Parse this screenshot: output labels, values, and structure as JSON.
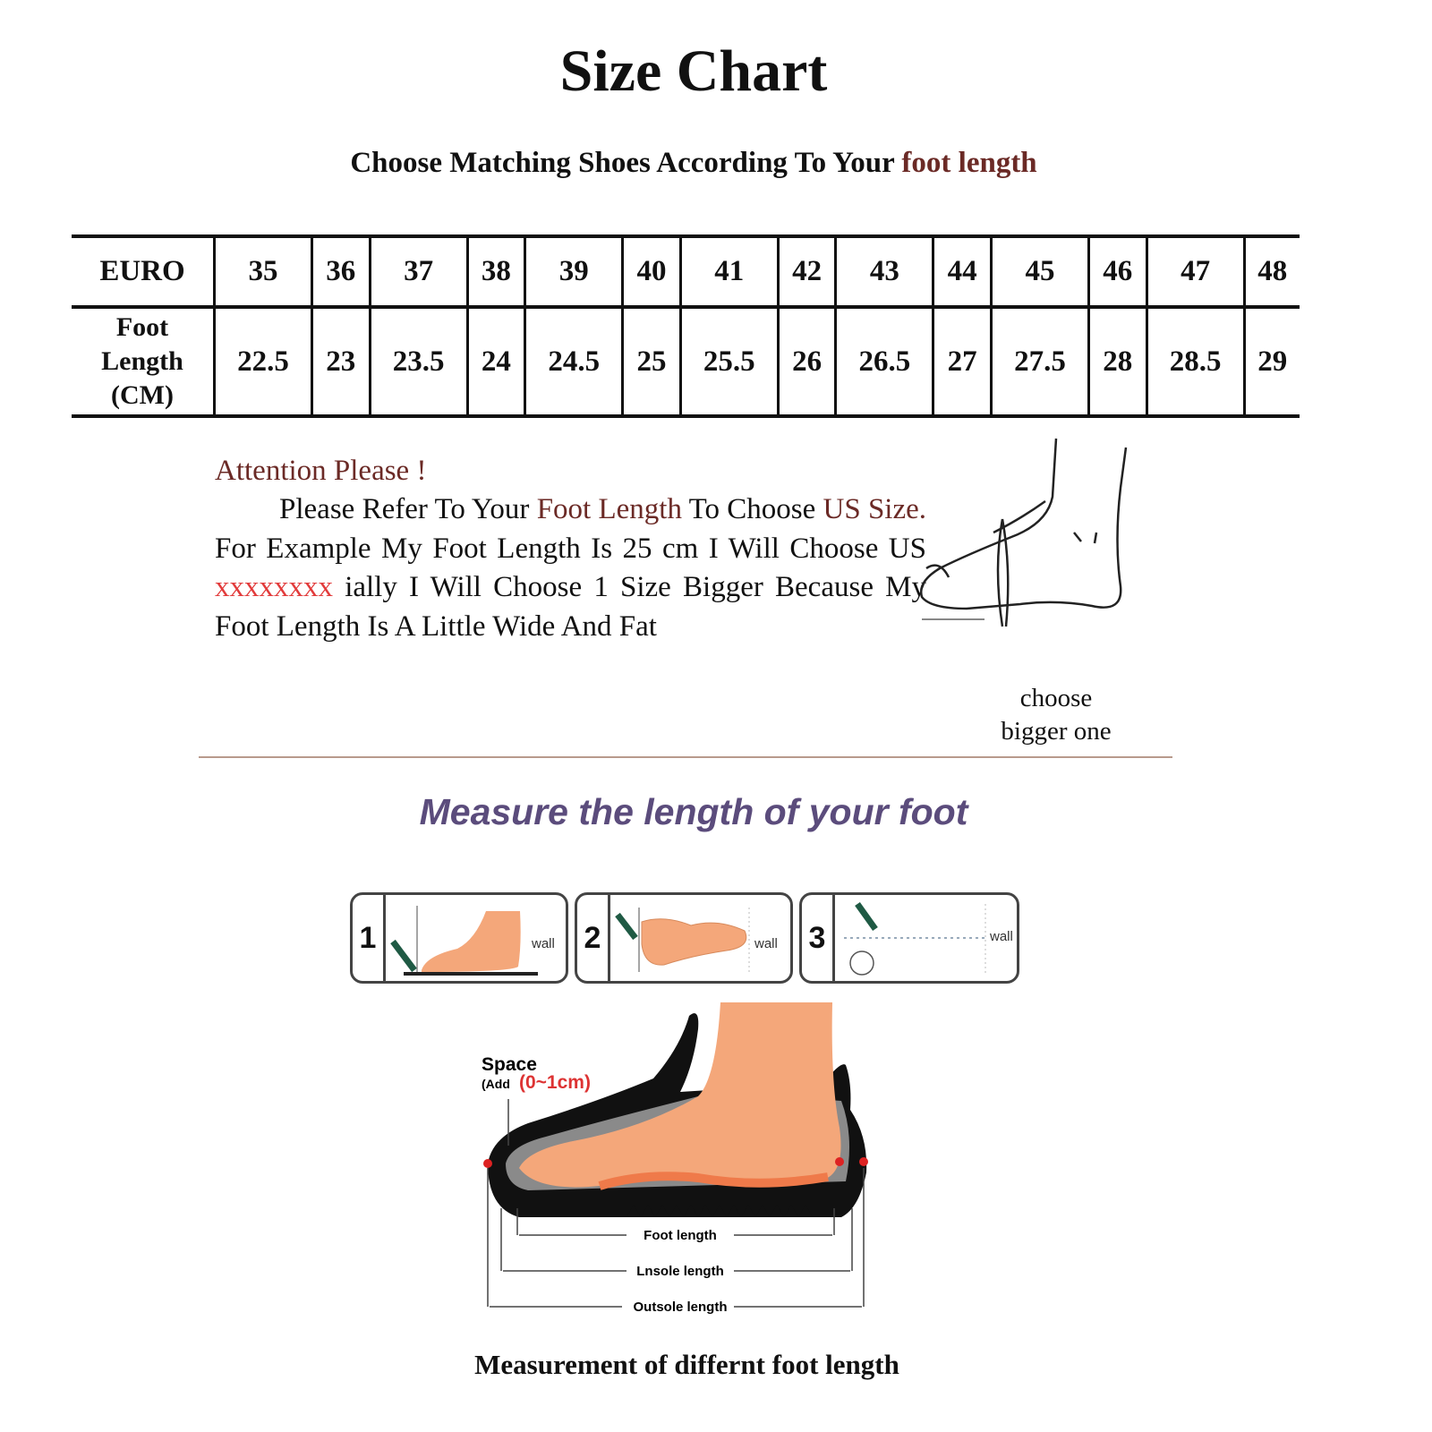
{
  "title": "Size Chart",
  "subtitle": {
    "prefix": "Choose Matching Shoes According To Your ",
    "highlight": "foot length"
  },
  "size_table": {
    "row_headers": [
      "EURO",
      "Foot",
      "Length",
      "(CM)"
    ],
    "euro": [
      "35",
      "36",
      "37",
      "38",
      "39",
      "40",
      "41",
      "42",
      "43",
      "44",
      "45",
      "46",
      "47",
      "48"
    ],
    "foot_length_cm": [
      "22.5",
      "23",
      "23.5",
      "24",
      "24.5",
      "25",
      "25.5",
      "26",
      "26.5",
      "27",
      "27.5",
      "28",
      "28.5",
      "29"
    ]
  },
  "attention": {
    "heading": "Attention Please !",
    "p1": "Please Refer To Your ",
    "p1_hl": "Foot Length",
    "p2": " To Choose ",
    "p2_hl": "US Size.",
    "p3": " For Example My Foot Length Is 25 cm I Will Choose US ",
    "p3_red": "xxxxxxxx",
    "p4": " ially I Will Choose 1 Size Bigger Because My Foot Length Is A Little Wide And Fat"
  },
  "foot_sketch_label": [
    "choose",
    "bigger one"
  ],
  "measure_heading": "Measure the length of your foot",
  "steps": [
    {
      "num": "1",
      "wall": "wall"
    },
    {
      "num": "2",
      "wall": "wall"
    },
    {
      "num": "3",
      "wall": "wall"
    }
  ],
  "shoe_diagram": {
    "space_label": "Space",
    "add_label": "(Add",
    "add_value": "(0~1cm)",
    "foot_length": "Foot length",
    "insole_length": "Lnsole length",
    "outsole_length": "Outsole length"
  },
  "caption": "Measurement of differnt foot length",
  "colors": {
    "accent": "#6b2a26",
    "red": "#e23b3b",
    "heading": "#5b4c7c",
    "skin": "#f4a77a",
    "divider": "#b89a8c"
  }
}
